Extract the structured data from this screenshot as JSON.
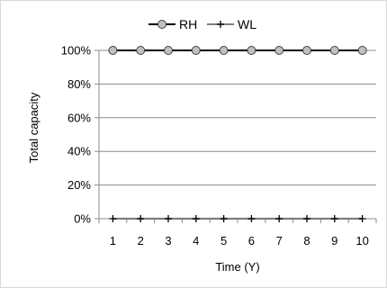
{
  "chart_data": {
    "type": "line",
    "xlabel": "Time (Y)",
    "ylabel": "Total capacity",
    "categories": [
      "1",
      "2",
      "3",
      "4",
      "5",
      "6",
      "7",
      "8",
      "9",
      "10"
    ],
    "yticks": [
      "0%",
      "20%",
      "40%",
      "60%",
      "80%",
      "100%"
    ],
    "ylim": [
      0,
      100
    ],
    "y_unit": "%",
    "grid": "horizontal",
    "legend": "top-center",
    "series": [
      {
        "name": "RH",
        "values": [
          100,
          100,
          100,
          100,
          100,
          100,
          100,
          100,
          100,
          100
        ],
        "color": "#000000",
        "marker": "circle",
        "marker_fill": "#c0c0c0"
      },
      {
        "name": "WL",
        "values": [
          0,
          0,
          0,
          0,
          0,
          0,
          0,
          0,
          0,
          0
        ],
        "color": "#7f7f7f",
        "marker": "plus",
        "marker_color": "#000000"
      }
    ]
  }
}
